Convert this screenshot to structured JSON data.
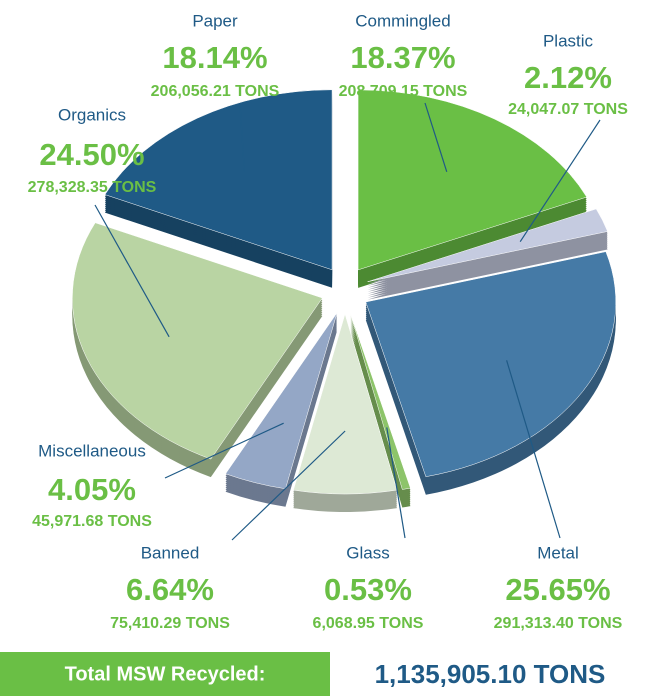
{
  "chart_data": {
    "type": "pie",
    "categories": [
      "Commingled",
      "Plastic",
      "Metal",
      "Glass",
      "Banned",
      "Miscellaneous",
      "Organics",
      "Paper"
    ],
    "values": [
      18.37,
      2.12,
      25.65,
      0.53,
      6.64,
      4.05,
      24.5,
      18.14
    ],
    "value_labels": [
      "18.37%",
      "2.12%",
      "25.65%",
      "0.53%",
      "6.64%",
      "4.05%",
      "24.50%",
      "18.14%"
    ],
    "tons": [
      "208,709.15 TONS",
      "24,047.07 TONS",
      "291,313.40 TONS",
      "6,068.95 TONS",
      "75,410.29 TONS",
      "45,971.68 TONS",
      "278,328.35 TONS",
      "206,056.21 TONS"
    ],
    "colors": [
      "#6abf45",
      "#c5cbe0",
      "#457aa6",
      "#8dc46a",
      "#dde9d5",
      "#94a7c6",
      "#b9d4a3",
      "#1f5a86"
    ]
  },
  "total": {
    "label": "Total MSW Recycled:",
    "value": "1,135,905.10 TONS"
  }
}
